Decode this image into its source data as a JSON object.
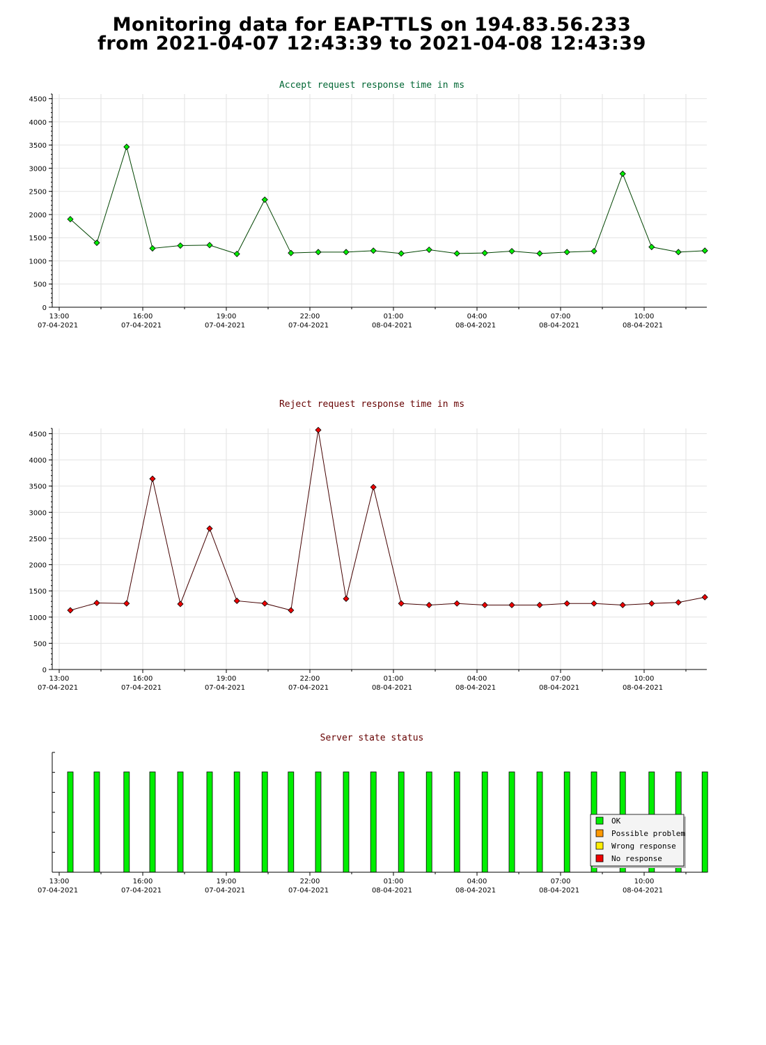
{
  "page": {
    "title_line1": "Monitoring data for EAP-TTLS on 194.83.56.233",
    "title_line2": "from 2021-04-07 12:43:39 to 2021-04-08 12:43:39"
  },
  "x_axis": {
    "range_hours": [
      12.75,
      36.25
    ],
    "ticks": [
      {
        "hour": 13,
        "time": "13:00",
        "date": "07-04-2021"
      },
      {
        "hour": 16,
        "time": "16:00",
        "date": "07-04-2021"
      },
      {
        "hour": 19,
        "time": "19:00",
        "date": "07-04-2021"
      },
      {
        "hour": 22,
        "time": "22:00",
        "date": "07-04-2021"
      },
      {
        "hour": 25,
        "time": "01:00",
        "date": "08-04-2021"
      },
      {
        "hour": 28,
        "time": "04:00",
        "date": "08-04-2021"
      },
      {
        "hour": 31,
        "time": "07:00",
        "date": "08-04-2021"
      },
      {
        "hour": 34,
        "time": "10:00",
        "date": "08-04-2021"
      }
    ]
  },
  "chart_data": [
    {
      "type": "line",
      "title": "Accept request response time in ms",
      "title_color": "#006633",
      "marker_color": "#00ee00",
      "line_color": "#004400",
      "ylim": [
        0,
        4600
      ],
      "yticks": [
        0,
        500,
        1000,
        1500,
        2000,
        2500,
        3000,
        3500,
        4000,
        4500
      ],
      "x": [
        13.4,
        14.35,
        15.42,
        16.35,
        17.35,
        18.4,
        19.38,
        20.38,
        21.32,
        22.3,
        23.3,
        24.28,
        25.28,
        26.28,
        27.28,
        28.28,
        29.25,
        30.25,
        31.23,
        32.2,
        33.23,
        34.27,
        35.23,
        36.18
      ],
      "values": [
        1900,
        1390,
        3460,
        1270,
        1330,
        1340,
        1150,
        2320,
        1170,
        1190,
        1190,
        1220,
        1160,
        1240,
        1160,
        1170,
        1210,
        1160,
        1190,
        1210,
        2880,
        1300,
        1190,
        1220
      ]
    },
    {
      "type": "line",
      "title": "Reject request response time in ms",
      "title_color": "#660000",
      "marker_color": "#ee0000",
      "line_color": "#440000",
      "ylim": [
        0,
        4600
      ],
      "yticks": [
        0,
        500,
        1000,
        1500,
        2000,
        2500,
        3000,
        3500,
        4000,
        4500
      ],
      "x": [
        13.4,
        14.35,
        15.42,
        16.35,
        17.35,
        18.4,
        19.38,
        20.38,
        21.32,
        22.3,
        23.3,
        24.28,
        25.28,
        26.28,
        27.28,
        28.28,
        29.25,
        30.25,
        31.23,
        32.2,
        33.23,
        34.27,
        35.23,
        36.18
      ],
      "values": [
        1130,
        1270,
        1260,
        3640,
        1250,
        2690,
        1310,
        1260,
        1130,
        4570,
        1350,
        3480,
        1260,
        1230,
        1260,
        1230,
        1230,
        1230,
        1260,
        1260,
        1230,
        1260,
        1280,
        1380
      ]
    },
    {
      "type": "bar",
      "title": "Server state status",
      "title_color": "#660000",
      "x": [
        13.4,
        14.35,
        15.42,
        16.35,
        17.35,
        18.4,
        19.38,
        20.38,
        21.32,
        22.3,
        23.3,
        24.28,
        25.28,
        26.28,
        27.28,
        28.28,
        29.25,
        30.25,
        31.23,
        32.2,
        33.23,
        34.27,
        35.23,
        36.18
      ],
      "status": [
        "OK",
        "OK",
        "OK",
        "OK",
        "OK",
        "OK",
        "OK",
        "OK",
        "OK",
        "OK",
        "OK",
        "OK",
        "OK",
        "OK",
        "OK",
        "OK",
        "OK",
        "OK",
        "OK",
        "OK",
        "OK",
        "OK",
        "OK",
        "OK"
      ],
      "legend_position": "bottom-right",
      "legend": [
        {
          "label": "OK",
          "color": "#00ee00"
        },
        {
          "label": "Possible problem",
          "color": "#ff9900"
        },
        {
          "label": "Wrong response",
          "color": "#ffee00"
        },
        {
          "label": "No response",
          "color": "#ee0000"
        }
      ]
    }
  ]
}
